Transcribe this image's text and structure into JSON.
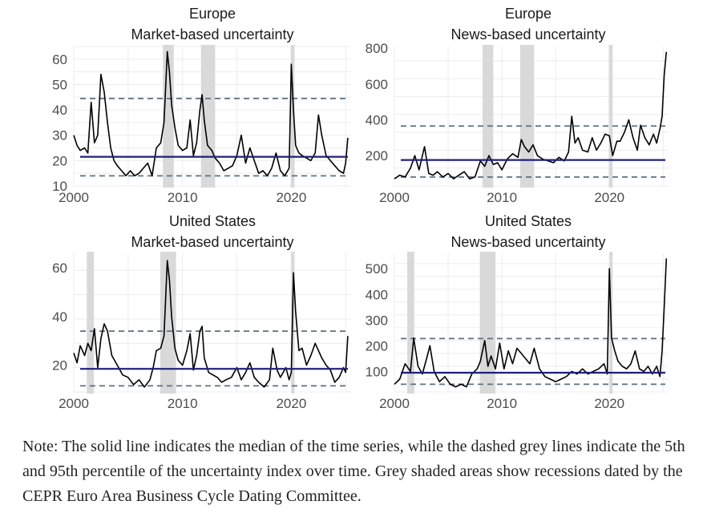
{
  "colors": {
    "median": "#1f1f7a",
    "percentile": "#5f6f80",
    "series": "#000000",
    "recession": "#d9d9d9",
    "grid": "#ececec"
  },
  "recessions": {
    "europe": [
      [
        2008.2,
        2009.2
      ],
      [
        2011.7,
        2013.0
      ],
      [
        2019.95,
        2020.3
      ]
    ],
    "us": [
      [
        2001.2,
        2001.85
      ],
      [
        2007.95,
        2009.4
      ],
      [
        2020.0,
        2020.3
      ]
    ]
  },
  "chart_data": [
    {
      "type": "line",
      "title": "Europe",
      "subtitle": "Market-based uncertainty",
      "ylim": [
        10,
        65
      ],
      "yticks": [
        10,
        20,
        30,
        40,
        50,
        60
      ],
      "xlim": [
        2000,
        2025.5
      ],
      "xticks": [
        2000,
        2010,
        2020
      ],
      "median": 21.5,
      "p5": 14,
      "p95": 44.5,
      "recession_set": "europe",
      "x": [
        2000.0,
        2000.3,
        2000.6,
        2001.0,
        2001.3,
        2001.6,
        2001.9,
        2002.2,
        2002.5,
        2002.8,
        2003.1,
        2003.4,
        2003.7,
        2004.0,
        2004.4,
        2004.8,
        2005.2,
        2005.6,
        2006.0,
        2006.4,
        2006.8,
        2007.2,
        2007.6,
        2008.0,
        2008.3,
        2008.6,
        2008.8,
        2009.0,
        2009.3,
        2009.6,
        2010.0,
        2010.4,
        2010.7,
        2011.0,
        2011.3,
        2011.6,
        2011.8,
        2012.0,
        2012.3,
        2012.7,
        2013.0,
        2013.4,
        2013.8,
        2014.2,
        2014.6,
        2015.0,
        2015.4,
        2015.8,
        2016.2,
        2016.6,
        2017.0,
        2017.4,
        2017.8,
        2018.2,
        2018.6,
        2019.0,
        2019.4,
        2019.8,
        2020.0,
        2020.2,
        2020.4,
        2020.7,
        2021.0,
        2021.4,
        2021.8,
        2022.2,
        2022.5,
        2022.8,
        2023.2,
        2023.6,
        2024.0,
        2024.4,
        2024.8,
        2025.0,
        2025.2
      ],
      "y": [
        30,
        26,
        24,
        25,
        23,
        43,
        27,
        30,
        54,
        47,
        35,
        25,
        20,
        18,
        16,
        14,
        16,
        14,
        15,
        17,
        19,
        14,
        25,
        27,
        35,
        63,
        55,
        42,
        33,
        26,
        24,
        25,
        36,
        22,
        27,
        40,
        46,
        36,
        26,
        24,
        21,
        19,
        16,
        17,
        18,
        22,
        30,
        19,
        25,
        20,
        15,
        16,
        14,
        17,
        23,
        16,
        14,
        17,
        58,
        40,
        26,
        23,
        22,
        21,
        20,
        23,
        38,
        30,
        22,
        20,
        18,
        16,
        15,
        19,
        29
      ]
    },
    {
      "type": "line",
      "title": "Europe",
      "subtitle": "News-based uncertainty",
      "ylim": [
        30,
        810
      ],
      "yticks": [
        200,
        400,
        600,
        800
      ],
      "xlim": [
        2000,
        2025.5
      ],
      "xticks": [
        2000,
        2010,
        2020
      ],
      "median": 175,
      "p5": 80,
      "p95": 365,
      "recession_set": "europe",
      "x": [
        2000.0,
        2000.5,
        2001.0,
        2001.5,
        2001.9,
        2002.3,
        2002.8,
        2003.2,
        2003.6,
        2004.0,
        2004.5,
        2005.0,
        2005.5,
        2006.0,
        2006.5,
        2007.0,
        2007.5,
        2008.0,
        2008.4,
        2008.8,
        2009.2,
        2009.6,
        2010.0,
        2010.5,
        2011.0,
        2011.5,
        2011.8,
        2012.1,
        2012.5,
        2012.9,
        2013.3,
        2013.8,
        2014.3,
        2014.8,
        2015.3,
        2015.8,
        2016.2,
        2016.5,
        2016.8,
        2017.1,
        2017.5,
        2018.0,
        2018.4,
        2018.8,
        2019.2,
        2019.6,
        2020.0,
        2020.3,
        2020.7,
        2021.0,
        2021.4,
        2021.8,
        2022.2,
        2022.6,
        2022.9,
        2023.3,
        2023.7,
        2024.1,
        2024.4,
        2024.7,
        2024.9,
        2025.1,
        2025.3
      ],
      "y": [
        70,
        90,
        80,
        130,
        200,
        120,
        250,
        100,
        90,
        110,
        80,
        100,
        70,
        90,
        110,
        70,
        80,
        170,
        140,
        200,
        150,
        160,
        120,
        180,
        210,
        190,
        290,
        250,
        220,
        260,
        200,
        180,
        170,
        160,
        190,
        170,
        220,
        420,
        270,
        300,
        230,
        220,
        300,
        230,
        270,
        320,
        310,
        200,
        280,
        280,
        330,
        400,
        300,
        230,
        370,
        300,
        260,
        320,
        270,
        350,
        420,
        650,
        780
      ]
    },
    {
      "type": "line",
      "title": "United States",
      "subtitle": "Market-based uncertainty",
      "ylim": [
        9,
        66
      ],
      "yticks": [
        20,
        40,
        60
      ],
      "xlim": [
        2000,
        2025.5
      ],
      "xticks": [
        2000,
        2010,
        2020
      ],
      "median": 18.5,
      "p5": 11.5,
      "p95": 34,
      "recession_set": "us",
      "x": [
        2000.0,
        2000.3,
        2000.6,
        2001.0,
        2001.3,
        2001.6,
        2001.9,
        2002.2,
        2002.5,
        2002.8,
        2003.1,
        2003.5,
        2004.0,
        2004.5,
        2005.0,
        2005.5,
        2006.0,
        2006.5,
        2007.0,
        2007.3,
        2007.6,
        2008.0,
        2008.3,
        2008.6,
        2008.8,
        2009.0,
        2009.3,
        2009.6,
        2010.0,
        2010.4,
        2010.7,
        2011.0,
        2011.3,
        2011.6,
        2011.8,
        2012.0,
        2012.4,
        2012.8,
        2013.2,
        2013.6,
        2014.0,
        2014.5,
        2015.0,
        2015.4,
        2015.8,
        2016.2,
        2016.6,
        2017.0,
        2017.5,
        2018.0,
        2018.3,
        2018.7,
        2019.0,
        2019.5,
        2019.8,
        2020.0,
        2020.2,
        2020.4,
        2020.7,
        2021.0,
        2021.4,
        2021.8,
        2022.2,
        2022.5,
        2022.8,
        2023.2,
        2023.6,
        2024.0,
        2024.4,
        2024.8,
        2025.0,
        2025.2
      ],
      "y": [
        25,
        21,
        28,
        24,
        29,
        26,
        35,
        19,
        31,
        37,
        34,
        24,
        20,
        16,
        15,
        12,
        14,
        11,
        14,
        19,
        26,
        27,
        32,
        63,
        55,
        40,
        27,
        22,
        20,
        26,
        33,
        18,
        24,
        34,
        36,
        23,
        17,
        16,
        15,
        13,
        14,
        15,
        19,
        14,
        17,
        21,
        15,
        13,
        11,
        14,
        27,
        18,
        15,
        19,
        14,
        17,
        58,
        42,
        26,
        27,
        20,
        24,
        29,
        26,
        23,
        20,
        18,
        13,
        15,
        19,
        17,
        32
      ]
    },
    {
      "type": "line",
      "title": "United States",
      "subtitle": "News-based uncertainty",
      "ylim": [
        20,
        560
      ],
      "yticks": [
        100,
        200,
        300,
        400,
        500
      ],
      "xlim": [
        2000,
        2025.5
      ],
      "xticks": [
        2000,
        2010,
        2020
      ],
      "median": 95,
      "p5": 50,
      "p95": 228,
      "recession_set": "us",
      "x": [
        2000.0,
        2000.5,
        2001.0,
        2001.5,
        2001.8,
        2002.2,
        2002.6,
        2003.0,
        2003.3,
        2003.7,
        2004.2,
        2004.7,
        2005.2,
        2005.7,
        2006.2,
        2006.7,
        2007.2,
        2007.7,
        2008.0,
        2008.4,
        2008.7,
        2009.0,
        2009.4,
        2009.8,
        2010.2,
        2010.6,
        2011.0,
        2011.4,
        2011.8,
        2012.2,
        2012.6,
        2013.0,
        2013.5,
        2014.0,
        2014.5,
        2015.0,
        2015.5,
        2016.0,
        2016.5,
        2017.0,
        2017.5,
        2018.0,
        2018.5,
        2019.0,
        2019.5,
        2019.8,
        2020.0,
        2020.2,
        2020.5,
        2020.8,
        2021.2,
        2021.6,
        2022.0,
        2022.4,
        2022.8,
        2023.2,
        2023.6,
        2024.0,
        2024.4,
        2024.7,
        2024.9,
        2025.1,
        2025.3
      ],
      "y": [
        50,
        70,
        130,
        100,
        230,
        120,
        90,
        150,
        200,
        100,
        60,
        80,
        50,
        40,
        50,
        40,
        90,
        110,
        140,
        220,
        120,
        160,
        110,
        210,
        110,
        180,
        130,
        190,
        170,
        150,
        130,
        190,
        110,
        80,
        70,
        60,
        70,
        80,
        100,
        90,
        110,
        90,
        100,
        110,
        130,
        90,
        500,
        230,
        180,
        140,
        120,
        110,
        130,
        180,
        110,
        100,
        120,
        90,
        120,
        80,
        180,
        350,
        540
      ]
    }
  ],
  "note": "Note: The solid line indicates the median of the time series, while the dashed grey lines indicate the 5th and 95th percentile of the uncertainty index over time. Grey shaded areas show recessions dated by the CEPR Euro Area Business Cycle Dating Committee."
}
